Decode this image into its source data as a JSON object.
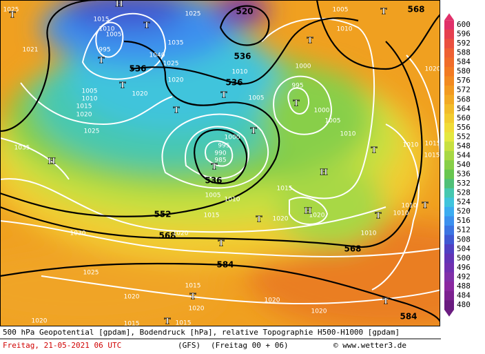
{
  "colorbar": {
    "labels": [
      600,
      596,
      592,
      588,
      584,
      580,
      576,
      572,
      568,
      564,
      560,
      556,
      552,
      548,
      544,
      540,
      536,
      532,
      528,
      524,
      520,
      516,
      512,
      508,
      504,
      500,
      496,
      492,
      488,
      484,
      480
    ],
    "colors": [
      "#e0306a",
      "#e6404f",
      "#ea5040",
      "#ee6034",
      "#f06c2a",
      "#f27a22",
      "#f28a20",
      "#f29a20",
      "#f2aa24",
      "#f2bc2a",
      "#f2cc30",
      "#f0dc38",
      "#e4e840",
      "#c8e040",
      "#a8d844",
      "#88cf48",
      "#68c650",
      "#50c078",
      "#46c8b0",
      "#40c4dc",
      "#3cacf0",
      "#3c90ee",
      "#3c74e2",
      "#4058d2",
      "#5040c2",
      "#6234b6",
      "#7030b0",
      "#8030a8",
      "#8a28a0",
      "#7c2290",
      "#6a1c80"
    ]
  },
  "map_labels": [
    "520",
    "536",
    "536",
    "536",
    "536",
    "552",
    "568",
    "568",
    "568",
    "584",
    "584",
    "1015",
    "1010",
    "1005",
    "995",
    "1025",
    "1035",
    "1040",
    "1025",
    "1020",
    "1020",
    "1005",
    "1010",
    "1015",
    "1020",
    "1025",
    "1035",
    "1021",
    "1010",
    "1005",
    "995",
    "1000",
    "1005",
    "1010",
    "1005",
    "1010",
    "1000",
    "1000",
    "995",
    "990",
    "985",
    "1005",
    "1010",
    "1015",
    "1015",
    "1020",
    "1020",
    "1020",
    "1030",
    "1025",
    "1020",
    "1020",
    "1015",
    "1015",
    "1020",
    "1020",
    "1020",
    "1015",
    "1010",
    "1015",
    "1015",
    "1010",
    "1010",
    "1010",
    "1020",
    "1025",
    "H",
    "T",
    "T",
    "T",
    "T",
    "T",
    "T",
    "T",
    "T",
    "T",
    "H",
    "H",
    "H",
    "T",
    "T",
    "T",
    "T",
    "T",
    "T",
    "T",
    "T",
    "T",
    "T"
  ],
  "caption": {
    "line1": "500 hPa Geopotential [gpdam], Bodendruck [hPa], relative Topographie H500-H1000 [gpdam]",
    "date": "Freitag, 21-05-2021  06 UTC",
    "model": "(GFS)",
    "run": "(Freitag 00 + 06)",
    "credit": "© www.wetter3.de"
  }
}
